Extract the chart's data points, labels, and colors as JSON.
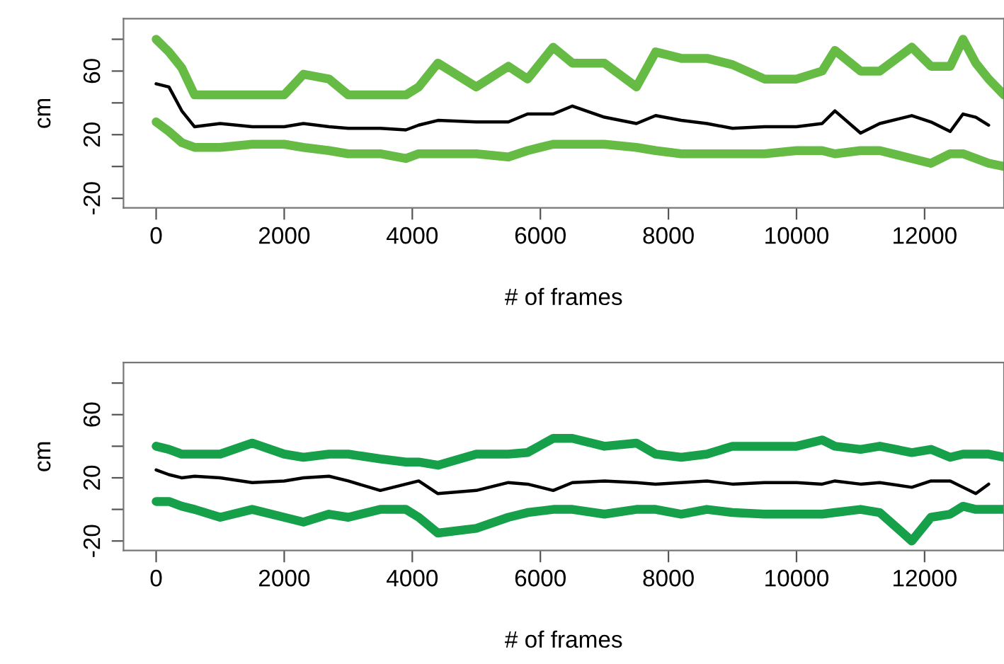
{
  "chart_data": [
    {
      "type": "line",
      "xlabel": "# of frames",
      "ylabel": "cm",
      "x": [
        0,
        200,
        400,
        600,
        1000,
        1500,
        2000,
        2300,
        2700,
        3000,
        3500,
        3900,
        4100,
        4400,
        5000,
        5500,
        5800,
        6200,
        6500,
        7000,
        7500,
        7800,
        8200,
        8600,
        9000,
        9500,
        10000,
        10400,
        10600,
        11000,
        11300,
        11800,
        12100,
        12400,
        12600,
        12800,
        13000,
        13240
      ],
      "series": [
        {
          "color": "#66bb44",
          "values": [
            80,
            72,
            62,
            45,
            45,
            45,
            45,
            58,
            55,
            45,
            45,
            45,
            50,
            65,
            50,
            63,
            55,
            75,
            65,
            65,
            50,
            72,
            68,
            68,
            64,
            55,
            55,
            60,
            73,
            60,
            60,
            75,
            63,
            63,
            80,
            65,
            55,
            45
          ]
        },
        {
          "color": "#66bb44",
          "values": [
            28,
            22,
            15,
            12,
            12,
            14,
            14,
            12,
            10,
            8,
            8,
            5,
            8,
            8,
            8,
            6,
            10,
            14,
            14,
            14,
            12,
            10,
            8,
            8,
            8,
            8,
            10,
            10,
            8,
            10,
            10,
            5,
            2,
            8,
            8,
            5,
            2,
            0
          ]
        },
        {
          "color": "#000000",
          "values": [
            52,
            50,
            35,
            25,
            27,
            25,
            25,
            27,
            25,
            24,
            24,
            23,
            26,
            29,
            28,
            28,
            33,
            33,
            38,
            31,
            27,
            32,
            29,
            27,
            24,
            25,
            25,
            27,
            35,
            21,
            27,
            32,
            28,
            22,
            33,
            31,
            26,
            null
          ]
        }
      ],
      "xlim": [
        -510,
        13240
      ],
      "xticks": [
        0,
        2000,
        4000,
        6000,
        8000,
        10000,
        12000
      ],
      "ylim": [
        -26,
        93
      ],
      "yticks": [
        -20,
        {
          "value": 0,
          "label": null
        },
        20,
        {
          "value": 40,
          "label": null
        },
        60,
        {
          "value": 80,
          "label": null
        }
      ],
      "grid": false,
      "legend": false,
      "line_style": "solid",
      "marker": "none"
    },
    {
      "type": "line",
      "xlabel": "# of frames",
      "ylabel": "cm",
      "x": [
        0,
        200,
        400,
        600,
        1000,
        1500,
        2000,
        2300,
        2700,
        3000,
        3500,
        3900,
        4100,
        4400,
        5000,
        5500,
        5800,
        6200,
        6500,
        7000,
        7500,
        7800,
        8200,
        8600,
        9000,
        9500,
        10000,
        10400,
        10600,
        11000,
        11300,
        11800,
        12100,
        12400,
        12600,
        12800,
        13000,
        13240
      ],
      "series": [
        {
          "color": "#16a04a",
          "values": [
            40,
            38,
            35,
            35,
            35,
            42,
            35,
            33,
            35,
            35,
            32,
            30,
            30,
            28,
            35,
            35,
            36,
            45,
            45,
            40,
            42,
            35,
            33,
            35,
            40,
            40,
            40,
            44,
            40,
            38,
            40,
            36,
            38,
            33,
            35,
            35,
            35,
            33
          ]
        },
        {
          "color": "#16a04a",
          "values": [
            5,
            5,
            2,
            0,
            -5,
            0,
            -5,
            -8,
            -3,
            -5,
            0,
            0,
            -5,
            -15,
            -12,
            -5,
            -2,
            0,
            0,
            -3,
            0,
            0,
            -3,
            0,
            -2,
            -3,
            -3,
            -3,
            -2,
            0,
            -2,
            -20,
            -5,
            -3,
            2,
            0,
            0,
            0
          ]
        },
        {
          "color": "#000000",
          "values": [
            25,
            22,
            20,
            21,
            20,
            17,
            18,
            20,
            21,
            18,
            12,
            16,
            18,
            10,
            12,
            17,
            16,
            12,
            17,
            18,
            17,
            16,
            17,
            18,
            16,
            17,
            17,
            16,
            18,
            16,
            17,
            14,
            18,
            18,
            14,
            10,
            16,
            null
          ]
        }
      ],
      "xlim": [
        -510,
        13240
      ],
      "xticks": [
        0,
        2000,
        4000,
        6000,
        8000,
        10000,
        12000
      ],
      "ylim": [
        -26,
        93
      ],
      "yticks": [
        -20,
        {
          "value": 0,
          "label": null
        },
        20,
        {
          "value": 40,
          "label": null
        },
        60,
        {
          "value": 80,
          "label": null
        }
      ],
      "grid": false,
      "legend": false,
      "line_style": "solid",
      "marker": "none"
    }
  ]
}
